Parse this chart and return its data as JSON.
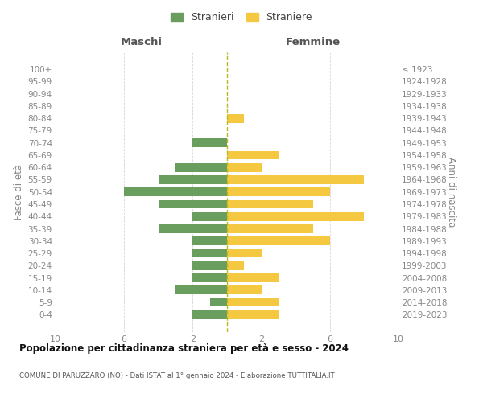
{
  "age_groups_bottom_to_top": [
    "0-4",
    "5-9",
    "10-14",
    "15-19",
    "20-24",
    "25-29",
    "30-34",
    "35-39",
    "40-44",
    "45-49",
    "50-54",
    "55-59",
    "60-64",
    "65-69",
    "70-74",
    "75-79",
    "80-84",
    "85-89",
    "90-94",
    "95-99",
    "100+"
  ],
  "birth_years_bottom_to_top": [
    "2019-2023",
    "2014-2018",
    "2009-2013",
    "2004-2008",
    "1999-2003",
    "1994-1998",
    "1989-1993",
    "1984-1988",
    "1979-1983",
    "1974-1978",
    "1969-1973",
    "1964-1968",
    "1959-1963",
    "1954-1958",
    "1949-1953",
    "1944-1948",
    "1939-1943",
    "1934-1938",
    "1929-1933",
    "1924-1928",
    "≤ 1923"
  ],
  "maschi_bottom_to_top": [
    2,
    1,
    3,
    2,
    2,
    2,
    2,
    4,
    2,
    4,
    6,
    4,
    3,
    0,
    2,
    0,
    0,
    0,
    0,
    0,
    0
  ],
  "femmine_bottom_to_top": [
    3,
    3,
    2,
    3,
    1,
    2,
    6,
    5,
    8,
    5,
    6,
    8,
    2,
    3,
    0,
    0,
    1,
    0,
    0,
    0,
    0
  ],
  "maschi_color": "#6a9e5e",
  "femmine_color": "#f5c842",
  "dashed_line_color": "#b8b820",
  "title": "Popolazione per cittadinanza straniera per età e sesso - 2024",
  "subtitle": "COMUNE DI PARUZZARO (NO) - Dati ISTAT al 1° gennaio 2024 - Elaborazione TUTTITALIA.IT",
  "xlabel_left": "Maschi",
  "xlabel_right": "Femmine",
  "ylabel_left": "Fasce di età",
  "ylabel_right": "Anni di nascita",
  "legend_maschi": "Stranieri",
  "legend_femmine": "Straniere",
  "xlim": 10,
  "background_color": "#ffffff",
  "grid_color": "#cccccc"
}
